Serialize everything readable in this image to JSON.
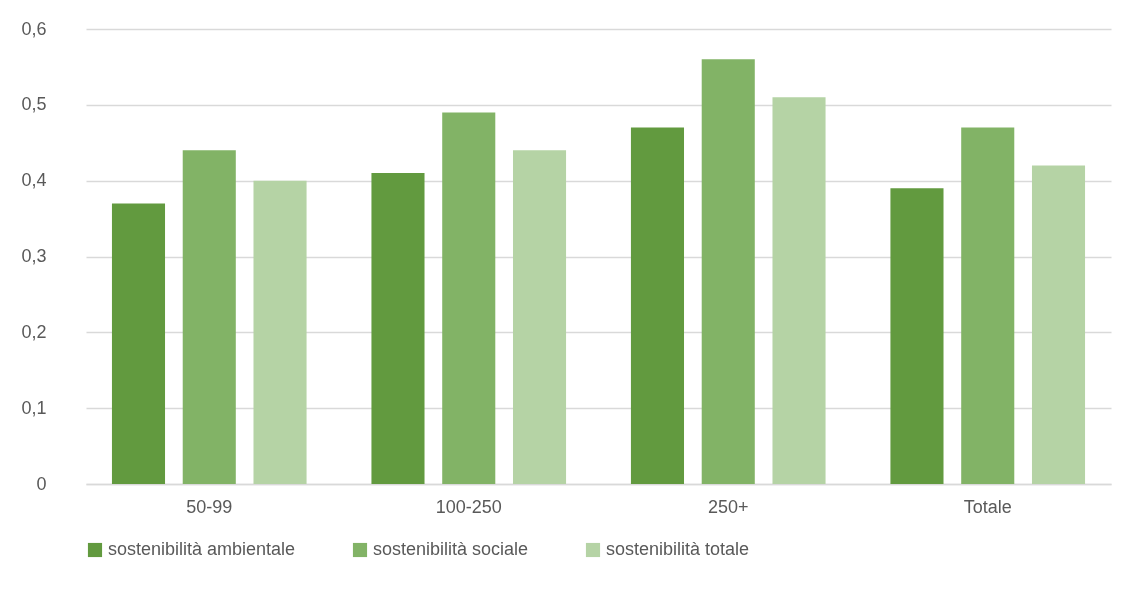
{
  "chart_data": {
    "type": "bar",
    "categories": [
      "50-99",
      "100-250",
      "250+",
      "Totale"
    ],
    "series": [
      {
        "name": "sostenibilità ambientale",
        "color": "#629a3f",
        "values": [
          0.37,
          0.41,
          0.47,
          0.39
        ]
      },
      {
        "name": "sostenibilità sociale",
        "color": "#82b366",
        "values": [
          0.44,
          0.49,
          0.56,
          0.47
        ]
      },
      {
        "name": "sostenibilità totale",
        "color": "#b5d3a5",
        "values": [
          0.4,
          0.44,
          0.51,
          0.42
        ]
      }
    ],
    "ylim": [
      0,
      0.6
    ],
    "yticks": [
      0,
      {
        "value": 0.1,
        "label": "0,1"
      },
      {
        "value": 0.2,
        "label": "0,2"
      },
      {
        "value": 0.3,
        "label": "0,3"
      },
      {
        "value": 0.4,
        "label": "0,4"
      },
      {
        "value": 0.5,
        "label": "0,5"
      },
      {
        "value": 0.6,
        "label": "0,6"
      }
    ],
    "grid": "y",
    "legend": "bottom"
  }
}
